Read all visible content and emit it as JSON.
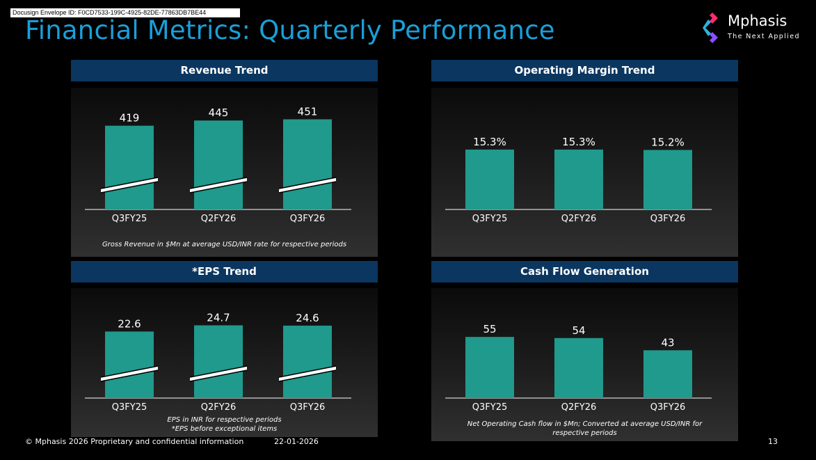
{
  "envelope_id": "Docusign Envelope ID: F0CD7533-199C-4925-82DE-77863DB7BE44",
  "title": "Financial Metrics: Quarterly Performance",
  "brand": {
    "name": "Mphasis",
    "tagline": "The Next Applied",
    "accent_color": "#1a9fd8",
    "header_color": "#0a3660",
    "bar_color": "#1f9a8c"
  },
  "panels": {
    "revenue": {
      "title": "Revenue Trend",
      "note": "Gross Revenue in $Mn at average USD/INR rate for respective periods"
    },
    "margin": {
      "title": "Operating Margin Trend"
    },
    "eps": {
      "title": "*EPS Trend",
      "note_line1": "EPS in INR for respective periods",
      "note_line2": "*EPS before exceptional items"
    },
    "cashflow": {
      "title": "Cash Flow Generation",
      "note_line1": "Net Operating Cash flow in $Mn; Converted at average USD/INR for",
      "note_line2": "respective periods"
    }
  },
  "chart_data": [
    {
      "id": "revenue",
      "type": "bar",
      "title": "Revenue Trend",
      "categories": [
        "Q3FY25",
        "Q2FY26",
        "Q3FY26"
      ],
      "values": [
        419,
        445,
        451
      ],
      "labels": [
        "419",
        "445",
        "451"
      ],
      "axis_break": true,
      "ylim": [
        0,
        470
      ],
      "xlabel": "",
      "ylabel": ""
    },
    {
      "id": "margin",
      "type": "bar",
      "title": "Operating Margin Trend",
      "categories": [
        "Q3FY25",
        "Q2FY26",
        "Q3FY26"
      ],
      "values": [
        15.3,
        15.3,
        15.2
      ],
      "labels": [
        "15.3%",
        "15.3%",
        "15.2%"
      ],
      "axis_break": false,
      "ylim": [
        0,
        24
      ],
      "xlabel": "",
      "ylabel": ""
    },
    {
      "id": "eps",
      "type": "bar",
      "title": "*EPS Trend",
      "categories": [
        "Q3FY25",
        "Q2FY26",
        "Q3FY26"
      ],
      "values": [
        22.6,
        24.7,
        24.6
      ],
      "labels": [
        "22.6",
        "24.7",
        "24.6"
      ],
      "axis_break": true,
      "ylim": [
        0,
        26
      ],
      "xlabel": "",
      "ylabel": ""
    },
    {
      "id": "cashflow",
      "type": "bar",
      "title": "Cash Flow Generation",
      "categories": [
        "Q3FY25",
        "Q2FY26",
        "Q3FY26"
      ],
      "values": [
        55,
        54,
        43
      ],
      "labels": [
        "55",
        "54",
        "43"
      ],
      "axis_break": false,
      "ylim": [
        0,
        72
      ],
      "xlabel": "",
      "ylabel": ""
    }
  ],
  "footer": {
    "copyright": "© Mphasis 2026  Proprietary and confidential information",
    "date": "22-01-2026",
    "page_number": "13"
  }
}
